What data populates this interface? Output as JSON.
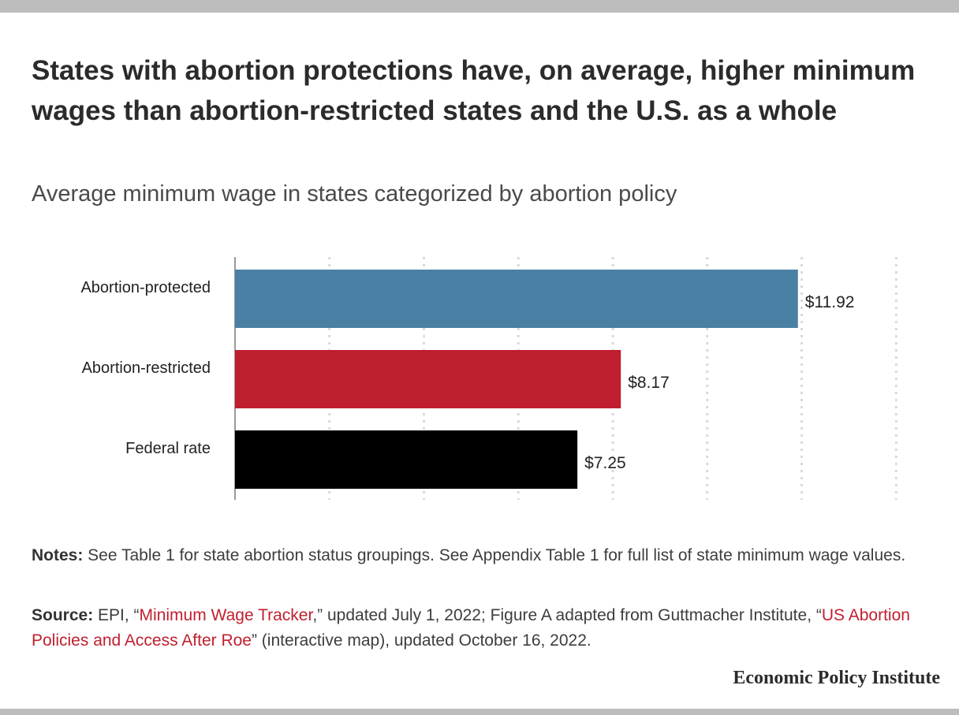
{
  "title": "States with abortion protections have, on average, higher minimum wages than abortion-restricted states and the U.S. as a whole",
  "subtitle": "Average minimum wage in states categorized by abortion policy",
  "notes": {
    "label": "Notes:",
    "text": " See Table 1 for state abortion status groupings. See Appendix Table 1 for full list of state minimum wage values."
  },
  "source": {
    "label": "Source:",
    "part1": " EPI, “",
    "link1": "Minimum Wage Tracker",
    "part2": ",” updated July 1, 2022; Figure A adapted from Guttmacher Institute, “",
    "link2": "US Abortion Policies and Access After Roe",
    "part3": "” (interactive map), updated October 16, 2022."
  },
  "brand": "Economic Policy Institute",
  "chart_data": {
    "type": "bar",
    "orientation": "horizontal",
    "categories": [
      "Abortion-protected",
      "Abortion-restricted",
      "Federal rate"
    ],
    "values": [
      11.92,
      8.17,
      7.25
    ],
    "value_labels": [
      "$11.92",
      "$8.17",
      "$7.25"
    ],
    "colors": [
      "#4a80a3",
      "#bf1e2e",
      "#000000"
    ],
    "xlim": [
      0,
      14
    ],
    "gridlines": [
      2,
      4,
      6,
      8,
      10,
      12,
      14
    ],
    "grid": true,
    "tick_labels_shown": false
  }
}
